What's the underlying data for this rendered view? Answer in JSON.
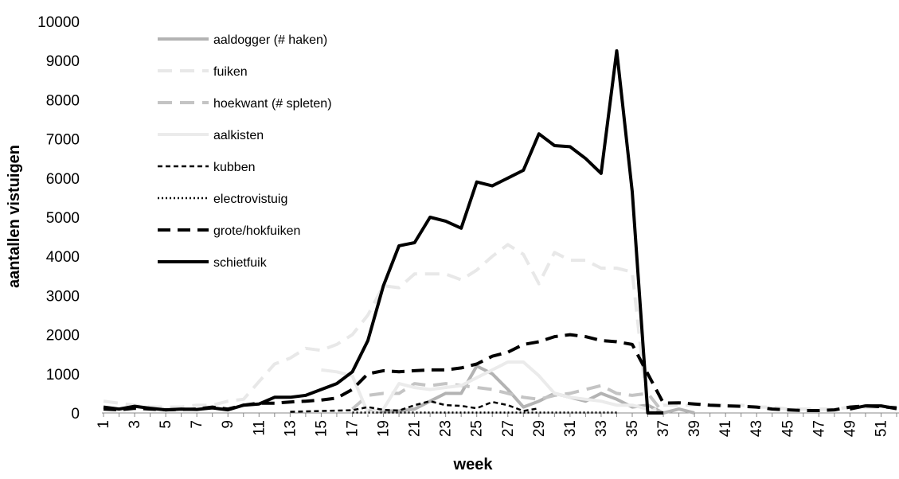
{
  "chart_data": {
    "type": "line",
    "xlabel": "week",
    "ylabel": "aantallen vistuigen",
    "categories": [
      1,
      null,
      3,
      null,
      5,
      null,
      7,
      null,
      9,
      null,
      11,
      null,
      13,
      null,
      15,
      null,
      17,
      null,
      19,
      null,
      21,
      null,
      23,
      null,
      25,
      null,
      27,
      null,
      29,
      null,
      31,
      null,
      33,
      null,
      35,
      null,
      37,
      null,
      39,
      null,
      41,
      null,
      43,
      null,
      45,
      null,
      47,
      null,
      49,
      null,
      51,
      null
    ],
    "ylim": [
      0,
      10000
    ],
    "yticks": [
      0,
      1000,
      2000,
      3000,
      4000,
      5000,
      6000,
      7000,
      8000,
      9000,
      10000
    ],
    "legend": "upper-left",
    "series": [
      {
        "name": "aaldogger (# haken)",
        "color": "#b3b3b3",
        "dash": "solid",
        "values": [
          null,
          null,
          null,
          null,
          null,
          null,
          null,
          null,
          null,
          null,
          null,
          null,
          null,
          null,
          null,
          null,
          null,
          50,
          50,
          50,
          100,
          300,
          500,
          500,
          1200,
          1000,
          600,
          150,
          300,
          500,
          400,
          300,
          500,
          350,
          150,
          200,
          0,
          100,
          0,
          null,
          null,
          null,
          null,
          null,
          null,
          null,
          null,
          null,
          null,
          null,
          null,
          null
        ]
      },
      {
        "name": "fuiken",
        "color": "#e8e8e8",
        "dash": "dashed",
        "values": [
          300,
          250,
          200,
          150,
          150,
          150,
          200,
          200,
          300,
          350,
          800,
          1250,
          1400,
          1650,
          1600,
          1750,
          2000,
          2500,
          3250,
          3200,
          3550,
          3550,
          3550,
          3400,
          3650,
          4000,
          4300,
          4050,
          3300,
          4100,
          3900,
          3900,
          3700,
          3700,
          3600,
          0,
          200,
          200,
          200,
          200,
          200,
          200,
          150,
          150,
          100,
          100,
          100,
          100,
          150,
          150,
          150,
          150
        ]
      },
      {
        "name": "hoekwant (# spleten)",
        "color": "#c4c4c4",
        "dash": "dashed",
        "values": [
          null,
          null,
          null,
          null,
          null,
          null,
          null,
          null,
          null,
          null,
          null,
          null,
          null,
          null,
          null,
          null,
          100,
          450,
          500,
          500,
          750,
          700,
          750,
          700,
          650,
          600,
          500,
          400,
          350,
          450,
          500,
          600,
          700,
          500,
          450,
          500,
          0,
          null,
          null,
          null,
          null,
          null,
          null,
          null,
          null,
          null,
          null,
          null,
          null,
          null,
          null,
          null
        ]
      },
      {
        "name": "aalkisten",
        "color": "#ebebeb",
        "dash": "solid",
        "values": [
          null,
          null,
          null,
          null,
          null,
          null,
          null,
          null,
          null,
          null,
          null,
          null,
          null,
          null,
          1100,
          1050,
          950,
          0,
          100,
          750,
          650,
          600,
          650,
          700,
          900,
          1100,
          1300,
          1300,
          950,
          500,
          400,
          350,
          300,
          200,
          200,
          100,
          null,
          null,
          null,
          null,
          null,
          null,
          null,
          null,
          null,
          null,
          null,
          null,
          null,
          null,
          null,
          null
        ]
      },
      {
        "name": "kubben",
        "color": "#000000",
        "dash": "short-dash",
        "values": [
          null,
          null,
          null,
          null,
          null,
          null,
          null,
          null,
          null,
          null,
          null,
          null,
          30,
          40,
          50,
          60,
          70,
          150,
          80,
          60,
          200,
          300,
          200,
          180,
          120,
          280,
          200,
          50,
          120,
          null,
          null,
          null,
          null,
          null,
          null,
          null,
          null,
          null,
          null,
          null,
          null,
          null,
          null,
          null,
          null,
          null,
          null,
          null,
          null,
          null,
          null,
          null
        ]
      },
      {
        "name": "electrovistuig",
        "color": "#000000",
        "dash": "dotted",
        "values": [
          null,
          null,
          null,
          null,
          null,
          null,
          null,
          null,
          null,
          null,
          null,
          null,
          null,
          null,
          null,
          null,
          10,
          10,
          10,
          10,
          10,
          10,
          10,
          10,
          10,
          10,
          10,
          10,
          10,
          10,
          10,
          10,
          10,
          10,
          null,
          null,
          null,
          null,
          null,
          null,
          null,
          null,
          null,
          null,
          null,
          null,
          null,
          null,
          null,
          null,
          null,
          null
        ]
      },
      {
        "name": "grote/hokfuiken",
        "color": "#000000",
        "dash": "long-dash",
        "values": [
          100,
          80,
          120,
          100,
          80,
          90,
          100,
          150,
          100,
          200,
          250,
          250,
          280,
          300,
          330,
          380,
          600,
          1000,
          1080,
          1050,
          1080,
          1100,
          1100,
          1150,
          1250,
          1450,
          1550,
          1750,
          1820,
          1950,
          2000,
          1950,
          1850,
          1820,
          1750,
          1000,
          250,
          260,
          230,
          200,
          180,
          170,
          150,
          100,
          80,
          60,
          60,
          80,
          150,
          180,
          160,
          130
        ]
      },
      {
        "name": "schietfuik",
        "color": "#000000",
        "dash": "solid",
        "values": [
          150,
          100,
          170,
          120,
          80,
          100,
          90,
          130,
          80,
          200,
          230,
          400,
          400,
          450,
          600,
          750,
          1050,
          1850,
          3250,
          4270,
          4350,
          5000,
          4900,
          4720,
          5900,
          5800,
          6000,
          6200,
          7130,
          6830,
          6800,
          6500,
          6120,
          9250,
          5650,
          0,
          0,
          null,
          null,
          null,
          null,
          null,
          null,
          null,
          null,
          null,
          null,
          null,
          100,
          180,
          180,
          110
        ]
      }
    ]
  }
}
